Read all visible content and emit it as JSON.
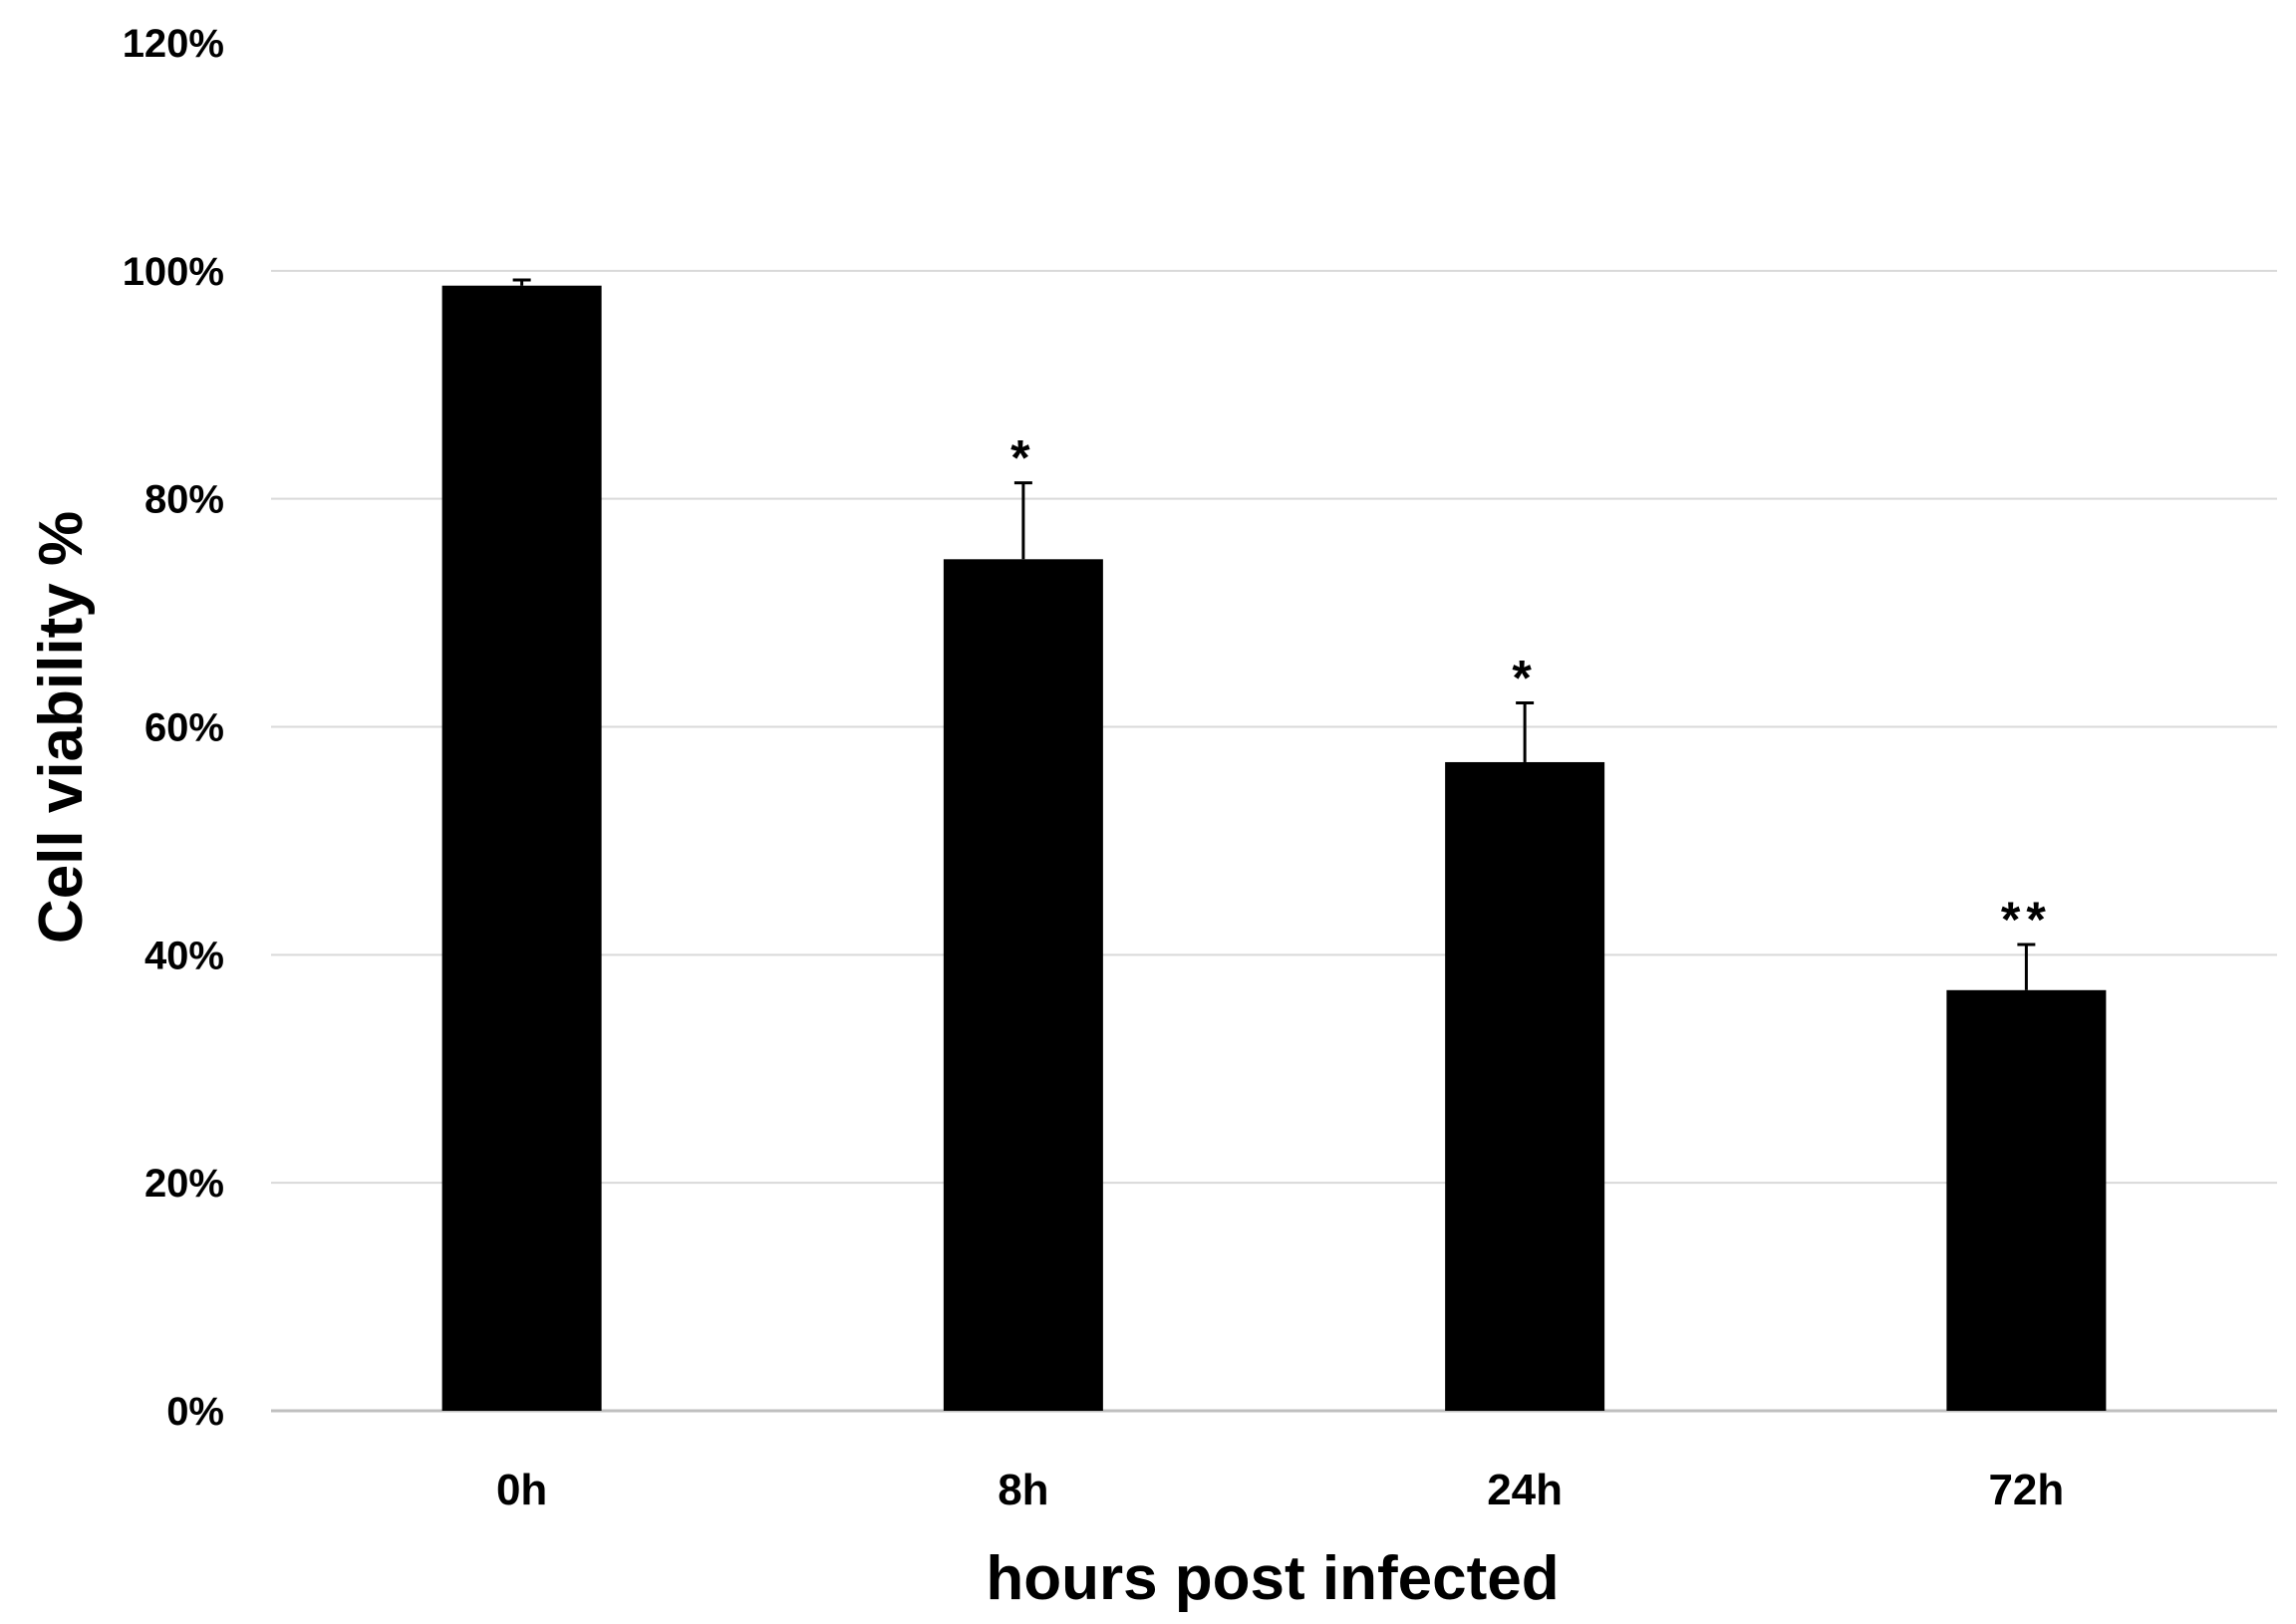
{
  "chart_data": {
    "type": "bar",
    "categories": [
      "0h",
      "8h",
      "24h",
      "72h"
    ],
    "values": [
      98.7,
      74.7,
      56.9,
      36.9
    ],
    "error_plus": [
      0.5,
      6.7,
      5.2,
      4.0
    ],
    "significance": [
      "",
      "*",
      "*",
      "**"
    ],
    "xlabel": "hours post infected",
    "ylabel": "Cell viability %",
    "ylim": [
      0,
      120
    ],
    "y_ticks": [
      "0%",
      "20%",
      "40%",
      "60%",
      "80%",
      "100%",
      "120%"
    ],
    "grid": true,
    "legend": "none",
    "colors": {
      "bar": "#000000",
      "grid": "#d9d9d9",
      "error_bar": "#000000"
    }
  }
}
